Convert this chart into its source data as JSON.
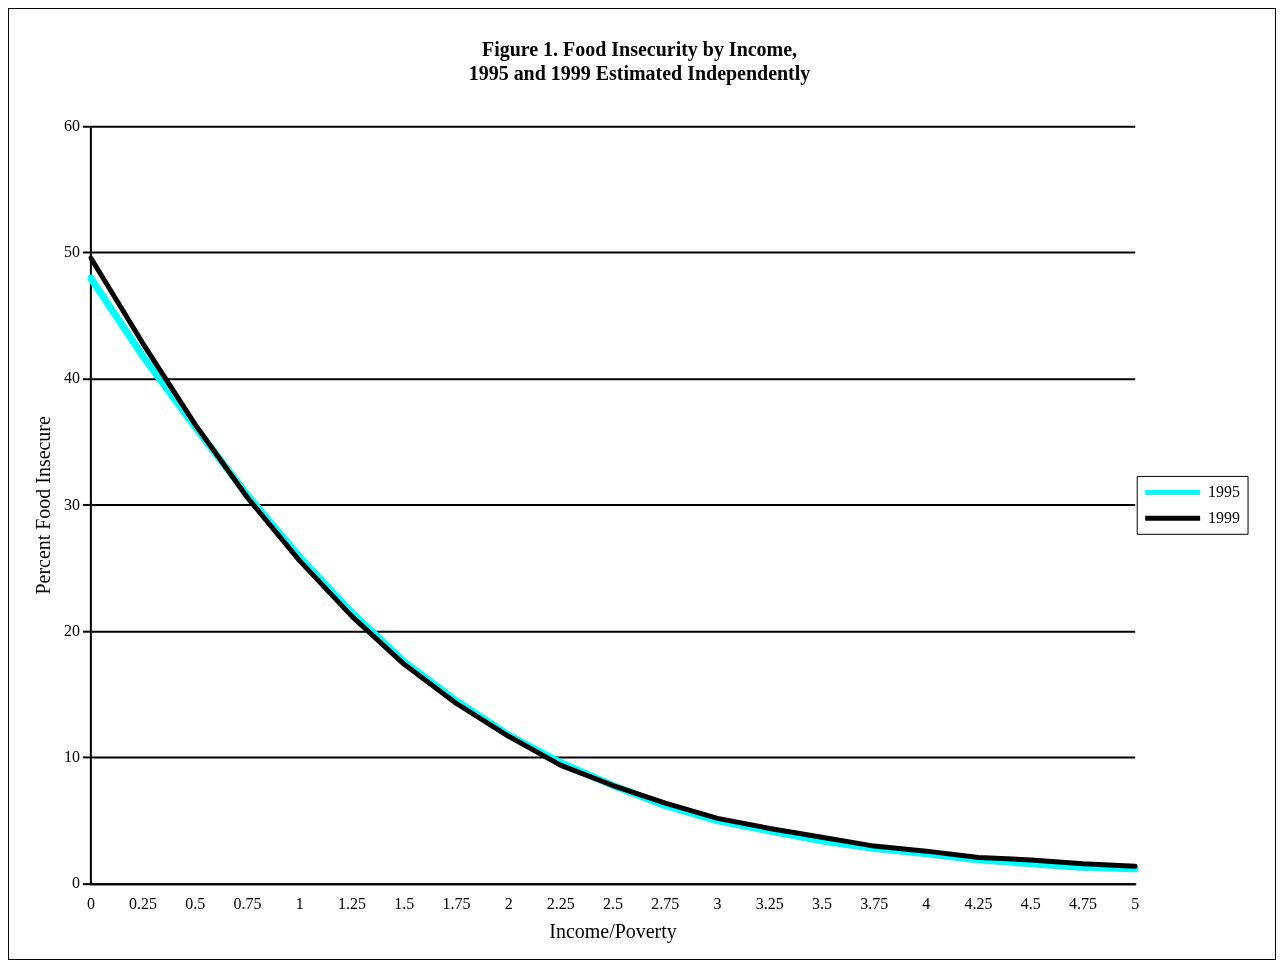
{
  "chart_data": {
    "type": "line",
    "title": [
      "Figure 1. Food Insecurity by Income,",
      "1995 and 1999 Estimated Independently"
    ],
    "xlabel": "Income/Poverty",
    "ylabel": "Percent Food Insecure",
    "categories": [
      "0",
      "0.25",
      "0.5",
      "0.75",
      "1",
      "1.25",
      "1.5",
      "1.75",
      "2",
      "2.25",
      "2.5",
      "2.75",
      "3",
      "3.25",
      "3.5",
      "3.75",
      "4",
      "4.25",
      "4.5",
      "4.75",
      "5"
    ],
    "series": [
      {
        "name": "1995",
        "color": "#00ffff",
        "values": [
          48.0,
          41.8,
          36.2,
          30.8,
          25.9,
          21.5,
          17.6,
          14.5,
          11.8,
          9.6,
          7.8,
          6.2,
          5.0,
          4.2,
          3.4,
          2.8,
          2.4,
          1.9,
          1.6,
          1.3,
          1.2
        ]
      },
      {
        "name": "1999",
        "color": "#000000",
        "values": [
          49.6,
          42.8,
          36.4,
          30.6,
          25.6,
          21.2,
          17.4,
          14.3,
          11.7,
          9.4,
          7.8,
          6.4,
          5.2,
          4.4,
          3.7,
          3.0,
          2.6,
          2.1,
          1.9,
          1.6,
          1.4
        ]
      }
    ],
    "ylim": [
      0,
      60
    ],
    "yticks": [
      0,
      10,
      20,
      30,
      40,
      50,
      60
    ],
    "grid": "y",
    "legend": "right",
    "marker": "none",
    "line_style": "solid"
  }
}
